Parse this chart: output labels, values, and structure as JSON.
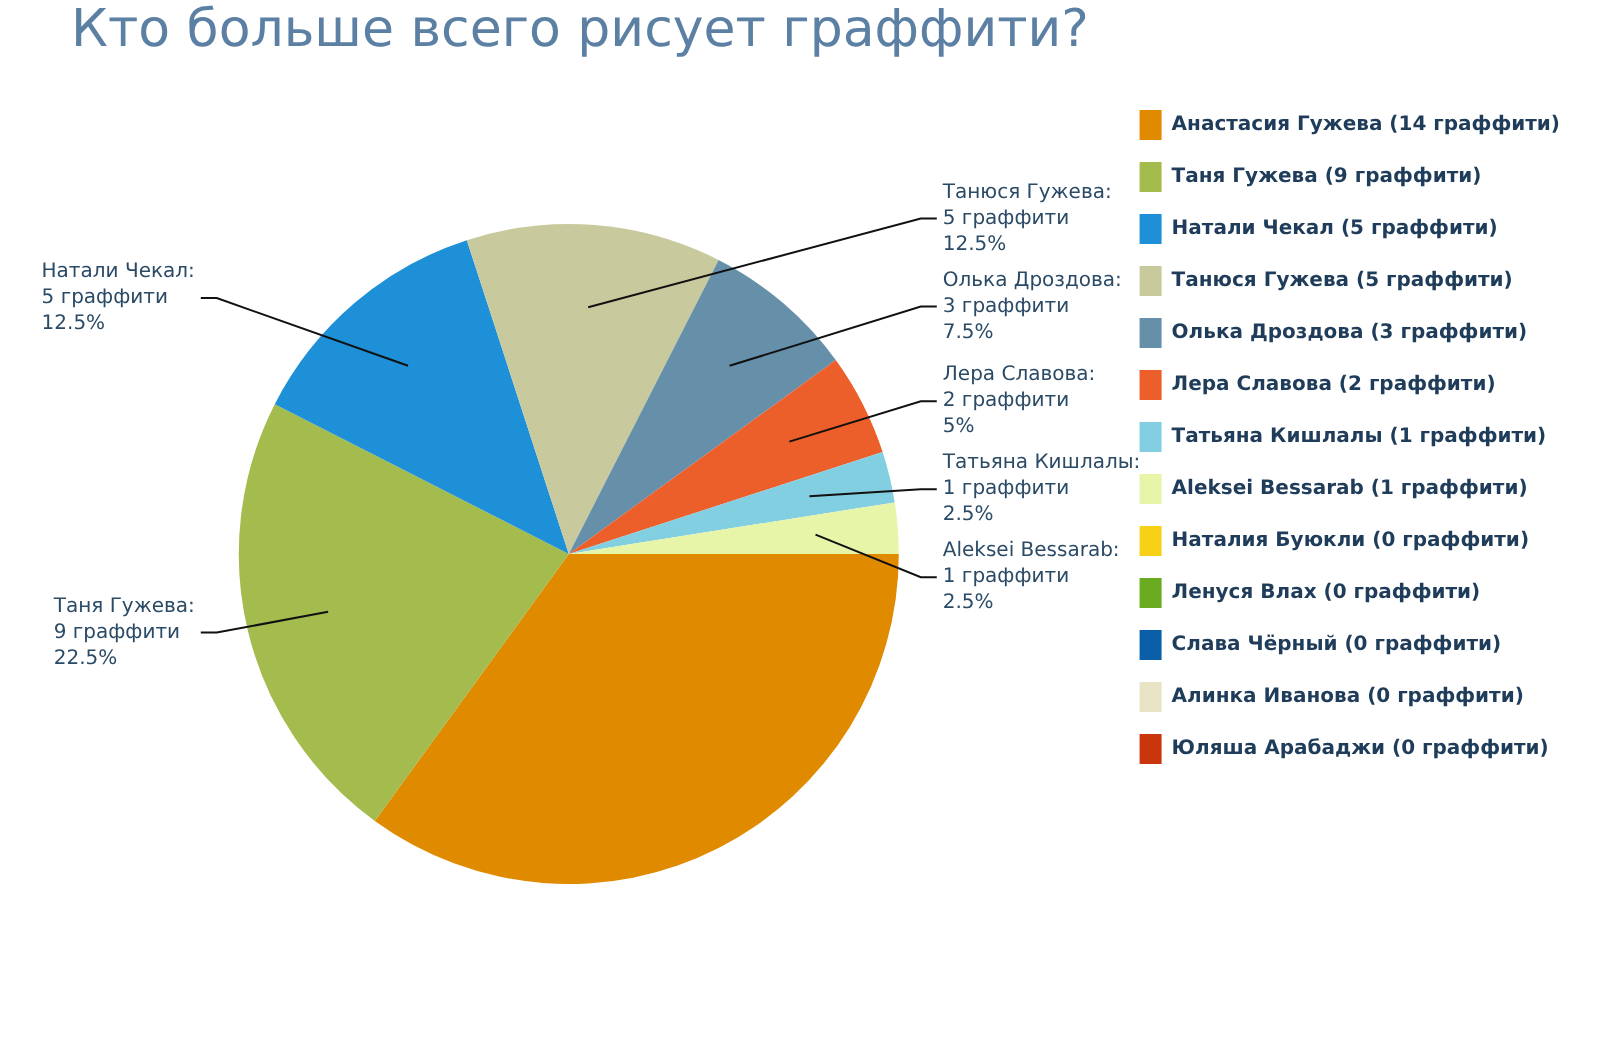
{
  "chart_data": {
    "type": "pie",
    "title": "Кто больше всего рисует граффити?",
    "categories": [
      "Анастасия Гужева (14 граффити)",
      "Таня Гужева (9 граффити)",
      "Натали Чекал (5 граффити)",
      "Танюся Гужева (5 граффити)",
      "Олька Дроздова (3 граффити)",
      "Лера Славова (2 граффити)",
      "Татьяна Кишлалы (1 граффити)",
      "Aleksei Bessarab (1 граффити)",
      "Наталия Буюкли (0 граффити)",
      "Ленуся Влах (0 граффити)",
      "Слава Чёрный (0 граффити)",
      "Алинка Иванова (0 граффити)",
      "Юляша Арабаджи (0 граффити)"
    ],
    "values": [
      14,
      9,
      5,
      5,
      3,
      2,
      1,
      1,
      0,
      0,
      0,
      0,
      0
    ],
    "colors": [
      "#e08a00",
      "#a4bb4d",
      "#1e90d8",
      "#c9c99e",
      "#6690aa",
      "#ec5e2a",
      "#82cfe2",
      "#e7f5a8",
      "#f7d117",
      "#6aaa1e",
      "#0b5ea8",
      "#e7e3c4",
      "#c9360d"
    ],
    "value_labels": [
      null,
      "Таня Гужева:\n9 граффити\n22.5%",
      "Натали Чекал:\n5 граффити\n12.5%",
      "Танюся Гужева:\n5 граффити\n12.5%",
      "Олька Дроздова:\n3 граффити\n7.5%",
      "Лера Славова:\n2 граффити\n5%",
      "Татьяна Кишлалы:\n1 граффити\n2.5%",
      "Aleksei Bessarab:\n1 граффити\n2.5%",
      null,
      null,
      null,
      null,
      null
    ],
    "legend": "right"
  }
}
